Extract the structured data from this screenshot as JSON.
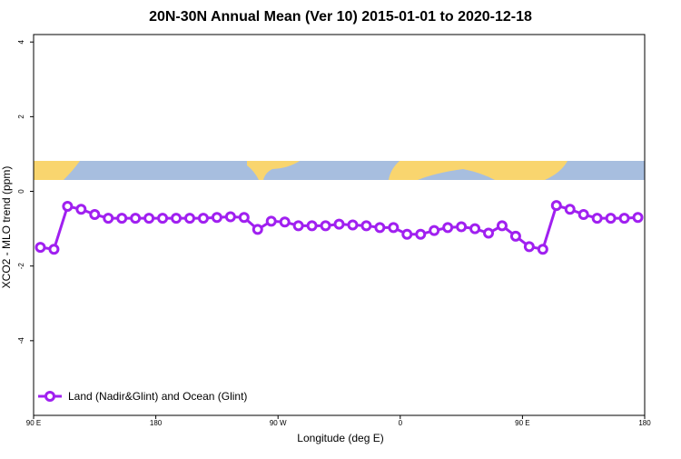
{
  "chart_data": {
    "type": "line",
    "title": "20N-30N Annual Mean (Ver 10)   2015-01-01 to 2020-12-18",
    "x_label": "Longitude (deg E)",
    "y_label": "XCO2 - MLO trend (ppm)",
    "xlim": [
      90,
      540
    ],
    "xticks": [
      {
        "value": 90,
        "label": "90 E"
      },
      180,
      {
        "value": 270,
        "label": "90 W"
      },
      {
        "value": 360,
        "label": "0"
      },
      {
        "value": 450,
        "label": "90 E"
      },
      {
        "value": 540,
        "label": "180"
      }
    ],
    "ylim": [
      -6,
      4.2
    ],
    "yticks": [
      -4,
      -2,
      0,
      2,
      4
    ],
    "legend": "bottom-left",
    "x": [
      95,
      105,
      115,
      125,
      135,
      145,
      155,
      165,
      175,
      185,
      195,
      205,
      215,
      225,
      235,
      245,
      255,
      265,
      275,
      285,
      295,
      305,
      315,
      325,
      335,
      345,
      355,
      365,
      375,
      385,
      395,
      405,
      415,
      425,
      435,
      445,
      455,
      465,
      475,
      485,
      495,
      505,
      515,
      525,
      535
    ],
    "series": [
      {
        "name": "Land (Nadir&Glint) and Ocean (Glint)",
        "color": "#a020f0",
        "values": [
          -1.5,
          -1.55,
          -0.4,
          -0.48,
          -0.62,
          -0.72,
          -0.72,
          -0.72,
          -0.72,
          -0.72,
          -0.72,
          -0.72,
          -0.72,
          -0.7,
          -0.68,
          -0.7,
          -1.02,
          -0.8,
          -0.82,
          -0.92,
          -0.92,
          -0.92,
          -0.88,
          -0.9,
          -0.92,
          -0.97,
          -0.97,
          -1.15,
          -1.15,
          -1.05,
          -0.97,
          -0.95,
          -1.0,
          -1.12,
          -0.92,
          -1.2,
          -1.48,
          -1.55,
          -0.38,
          -0.48,
          -0.62,
          -0.72,
          -0.72,
          -0.72,
          -0.7
        ]
      }
    ]
  }
}
